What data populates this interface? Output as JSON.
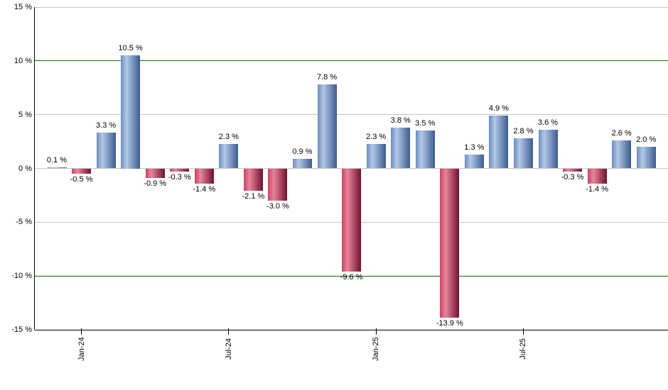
{
  "chart_data": {
    "type": "bar",
    "title": "",
    "xlabel": "",
    "ylabel": "",
    "unit": "%",
    "ylim": [
      -15,
      15
    ],
    "grid": true,
    "legend_position": "none",
    "y_ticks": [
      {
        "value": 15,
        "label": "15 %",
        "line": "minor"
      },
      {
        "value": 10,
        "label": "10 %",
        "line": "accent"
      },
      {
        "value": 5,
        "label": "5 %",
        "line": "minor"
      },
      {
        "value": 0,
        "label": "0 %",
        "line": "minor"
      },
      {
        "value": -5,
        "label": "-5 %",
        "line": "minor"
      },
      {
        "value": -10,
        "label": "-10 %",
        "line": "accent"
      },
      {
        "value": -15,
        "label": "-15 %",
        "line": "axis"
      }
    ],
    "x_ticks": [
      {
        "bar_index": 1,
        "label": "Jan-24"
      },
      {
        "bar_index": 7,
        "label": "Jul-24"
      },
      {
        "bar_index": 13,
        "label": "Jan-25"
      },
      {
        "bar_index": 19,
        "label": "Jul-25"
      }
    ],
    "bars": [
      {
        "value": 0.1,
        "label": "0.1 %"
      },
      {
        "value": -0.5,
        "label": "-0.5 %"
      },
      {
        "value": 3.3,
        "label": "3.3 %"
      },
      {
        "value": 10.5,
        "label": "10.5 %"
      },
      {
        "value": -0.9,
        "label": "-0.9 %"
      },
      {
        "value": -0.3,
        "label": "-0.3 %"
      },
      {
        "value": -1.4,
        "label": "-1.4 %"
      },
      {
        "value": 2.3,
        "label": "2.3 %"
      },
      {
        "value": -2.1,
        "label": "-2.1 %"
      },
      {
        "value": -3.0,
        "label": "-3.0 %"
      },
      {
        "value": 0.9,
        "label": "0.9 %"
      },
      {
        "value": 7.8,
        "label": "7.8 %"
      },
      {
        "value": -9.6,
        "label": "-9.6 %"
      },
      {
        "value": 2.3,
        "label": "2.3 %"
      },
      {
        "value": 3.8,
        "label": "3.8 %"
      },
      {
        "value": 3.5,
        "label": "3.5 %"
      },
      {
        "value": -13.9,
        "label": "-13.9 %"
      },
      {
        "value": 1.3,
        "label": "1.3 %"
      },
      {
        "value": 4.9,
        "label": "4.9 %"
      },
      {
        "value": 2.8,
        "label": "2.8 %"
      },
      {
        "value": 3.6,
        "label": "3.6 %"
      },
      {
        "value": -0.3,
        "label": "-0.3 %"
      },
      {
        "value": -1.4,
        "label": "-1.4 %"
      },
      {
        "value": 2.6,
        "label": "2.6 %"
      },
      {
        "value": 2.0,
        "label": "2.0 %"
      }
    ],
    "colors": {
      "positive_bar_gradient": [
        "#6c8cbe",
        "#b2c8e8",
        "#3c5c8e"
      ],
      "negative_bar_gradient": [
        "#c84563",
        "#e8849a",
        "#701030"
      ],
      "grid_minor": "#c6c6c6",
      "grid_accent": "#007300",
      "axis": "#000000",
      "label_text": "#000000"
    }
  }
}
